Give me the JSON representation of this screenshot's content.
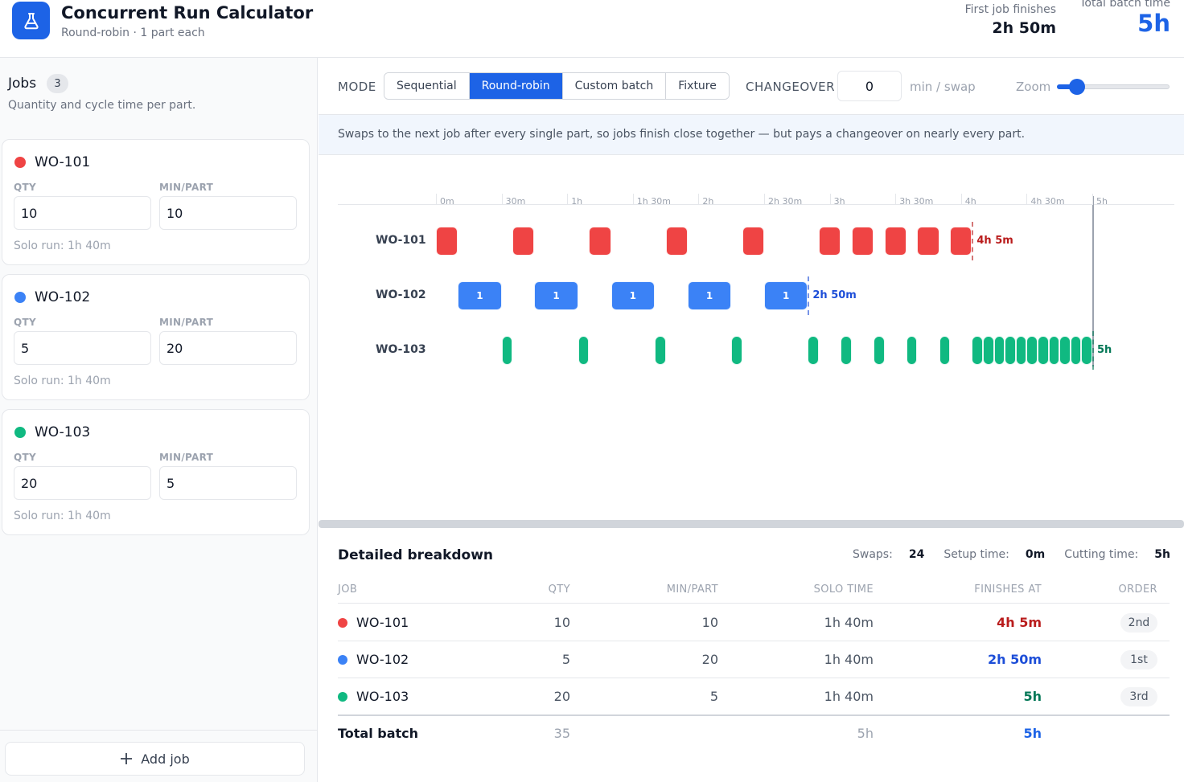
{
  "header": {
    "title": "Concurrent Run Calculator",
    "subtitle": "Round-robin · 1 part each",
    "first_job_label": "First job finishes",
    "first_job_value": "2h 50m",
    "total_batch_label": "Total batch time",
    "total_batch_value": "5h"
  },
  "sidebar": {
    "title": "Jobs",
    "count": "3",
    "description": "Quantity and cycle time per part.",
    "qty_label": "QTY",
    "min_part_label": "MIN/PART",
    "add_job_label": "Add job",
    "jobs": [
      {
        "name": "WO-101",
        "color": "#ef4444",
        "qty": "10",
        "min_part": "10",
        "solo_run": "Solo run: 1h 40m"
      },
      {
        "name": "WO-102",
        "color": "#3b82f6",
        "qty": "5",
        "min_part": "20",
        "solo_run": "Solo run: 1h 40m"
      },
      {
        "name": "WO-103",
        "color": "#10b981",
        "qty": "20",
        "min_part": "5",
        "solo_run": "Solo run: 1h 40m"
      }
    ]
  },
  "toolbar": {
    "mode_label": "MODE",
    "modes": [
      "Sequential",
      "Round-robin",
      "Custom batch",
      "Fixture"
    ],
    "active_mode": "Round-robin",
    "changeover_label": "CHANGEOVER",
    "changeover_value": "0",
    "changeover_unit": "min / swap",
    "zoom_label": "Zoom",
    "zoom_level": 0.18
  },
  "info": {
    "text": "Swaps to the next job after every single part, so jobs finish close together — but pays a changeover on nearly every part."
  },
  "timeline": {
    "ticks": [
      "0m",
      "30m",
      "1h",
      "1h 30m",
      "2h",
      "2h 30m",
      "3h",
      "3h 30m",
      "4h",
      "4h 30m",
      "5h"
    ],
    "tick_minutes": [
      0,
      30,
      60,
      90,
      120,
      150,
      180,
      210,
      240,
      270,
      300
    ],
    "rows": [
      {
        "name": "WO-101",
        "color": "#ef4444",
        "finish_label": "4h 5m",
        "finish_color": "#b91c1c",
        "finish_minutes": 245,
        "block_label": "",
        "blocks": [
          [
            0,
            10
          ],
          [
            35,
            45
          ],
          [
            70,
            80
          ],
          [
            105,
            115
          ],
          [
            140,
            150
          ],
          [
            175,
            185
          ],
          [
            190,
            200
          ],
          [
            205,
            215
          ],
          [
            220,
            230
          ],
          [
            235,
            245
          ]
        ]
      },
      {
        "name": "WO-102",
        "color": "#3b82f6",
        "finish_label": "2h 50m",
        "finish_color": "#1d4ed8",
        "finish_minutes": 170,
        "block_label": "1",
        "blocks": [
          [
            10,
            30
          ],
          [
            45,
            65
          ],
          [
            80,
            100
          ],
          [
            115,
            135
          ],
          [
            150,
            170
          ]
        ]
      },
      {
        "name": "WO-103",
        "color": "#10b981",
        "finish_label": "5h",
        "finish_color": "#047857",
        "finish_minutes": 300,
        "block_label": "",
        "blocks": [
          [
            30,
            35
          ],
          [
            65,
            70
          ],
          [
            100,
            105
          ],
          [
            135,
            140
          ],
          [
            170,
            175
          ],
          [
            185,
            190
          ],
          [
            200,
            205
          ],
          [
            215,
            220
          ],
          [
            230,
            235
          ],
          [
            245,
            250
          ],
          [
            250,
            255
          ],
          [
            255,
            260
          ],
          [
            260,
            265
          ],
          [
            265,
            270
          ],
          [
            270,
            275
          ],
          [
            275,
            280
          ],
          [
            280,
            285
          ],
          [
            285,
            290
          ],
          [
            290,
            295
          ],
          [
            295,
            300
          ]
        ]
      }
    ]
  },
  "breakdown": {
    "title": "Detailed breakdown",
    "swaps_label": "Swaps:",
    "swaps_value": "24",
    "setup_label": "Setup time:",
    "setup_value": "0m",
    "cutting_label": "Cutting time:",
    "cutting_value": "5h",
    "columns": [
      "JOB",
      "QTY",
      "MIN/PART",
      "SOLO TIME",
      "FINISHES AT",
      "ORDER"
    ],
    "rows": [
      {
        "job": "WO-101",
        "color": "#ef4444",
        "qty": "10",
        "min_part": "10",
        "solo": "1h 40m",
        "finishes": "4h 5m",
        "finish_color": "#b91c1c",
        "order": "2nd"
      },
      {
        "job": "WO-102",
        "color": "#3b82f6",
        "qty": "5",
        "min_part": "20",
        "solo": "1h 40m",
        "finishes": "2h 50m",
        "finish_color": "#1d4ed8",
        "order": "1st"
      },
      {
        "job": "WO-103",
        "color": "#10b981",
        "qty": "20",
        "min_part": "5",
        "solo": "1h 40m",
        "finishes": "5h",
        "finish_color": "#047857",
        "order": "3rd"
      }
    ],
    "total": {
      "label": "Total batch",
      "qty": "35",
      "solo": "5h",
      "finishes": "5h"
    }
  },
  "colors": {
    "accent": "#1d63e6"
  }
}
